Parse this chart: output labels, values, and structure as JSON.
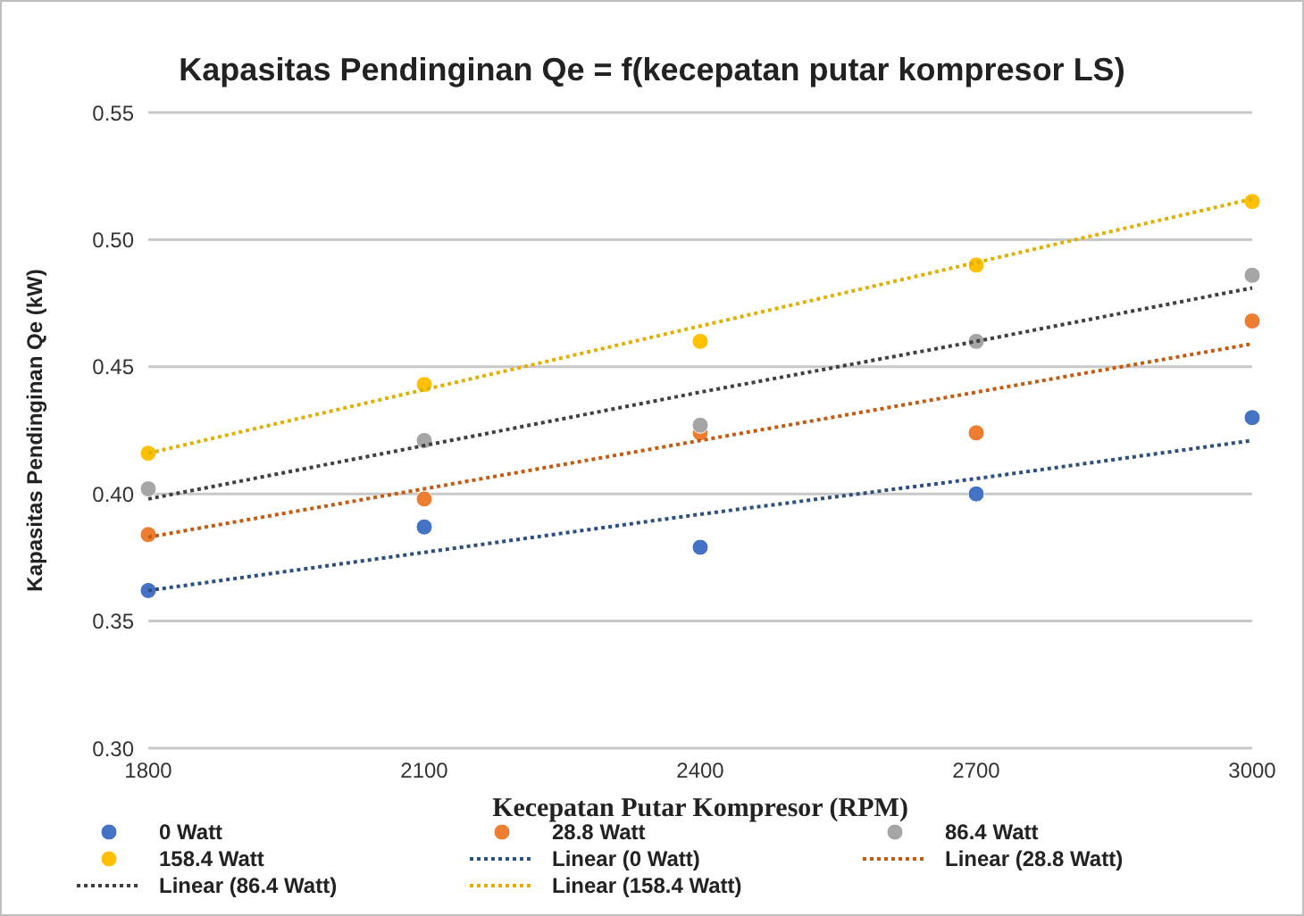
{
  "chart_data": {
    "type": "scatter",
    "title": "Kapasitas Pendinginan Qe = f(kecepatan putar kompresor LS)",
    "xlabel": "Kecepatan Putar Kompresor (RPM)",
    "ylabel": "Kapasitas Pendinginan Qe (kW)",
    "x": [
      1800,
      2100,
      2400,
      2700,
      3000
    ],
    "series": [
      {
        "name": "0 Watt",
        "color": "#4472c4",
        "values": [
          0.362,
          0.387,
          0.379,
          0.4,
          0.43
        ],
        "marker": "circle"
      },
      {
        "name": "28.8 Watt",
        "color": "#ed7d31",
        "values": [
          0.384,
          0.398,
          0.424,
          0.424,
          0.468
        ],
        "marker": "circle"
      },
      {
        "name": "86.4 Watt",
        "color": "#a5a5a5",
        "values": [
          0.402,
          0.421,
          0.427,
          0.46,
          0.486
        ],
        "marker": "circle"
      },
      {
        "name": "158.4 Watt",
        "color": "#ffc000",
        "values": [
          0.416,
          0.443,
          0.46,
          0.49,
          0.515
        ],
        "marker": "circle"
      },
      {
        "name": "Linear (0 Watt)",
        "type": "line",
        "color": "#2f4f7f",
        "values": [
          0.362,
          0.377,
          0.392,
          0.406,
          0.421
        ],
        "line_style": "dotted",
        "marker": "none"
      },
      {
        "name": "Linear (28.8 Watt)",
        "type": "line",
        "color": "#c55a11",
        "values": [
          0.383,
          0.402,
          0.421,
          0.44,
          0.459
        ],
        "line_style": "dotted",
        "marker": "none"
      },
      {
        "name": "Linear (86.4 Watt)",
        "type": "line",
        "color": "#404040",
        "values": [
          0.398,
          0.419,
          0.44,
          0.46,
          0.481
        ],
        "line_style": "dotted",
        "marker": "none"
      },
      {
        "name": "Linear (158.4 Watt)",
        "type": "line",
        "color": "#e0b000",
        "values": [
          0.416,
          0.441,
          0.466,
          0.491,
          0.516
        ],
        "line_style": "dotted",
        "marker": "none"
      }
    ],
    "xlim": [
      1800,
      3000
    ],
    "xticks": [
      1800,
      2100,
      2400,
      2700,
      3000
    ],
    "ylim": [
      0.3,
      0.55
    ],
    "yticks": [
      {
        "value": 0.3,
        "label": "0.30"
      },
      {
        "value": 0.35,
        "label": "0.35"
      },
      {
        "value": 0.4,
        "label": "0.40"
      },
      {
        "value": 0.45,
        "label": "0.45"
      },
      {
        "value": 0.5,
        "label": "0.50"
      },
      {
        "value": 0.55,
        "label": "0.55"
      }
    ],
    "grid": "y",
    "legend": "bottom"
  }
}
